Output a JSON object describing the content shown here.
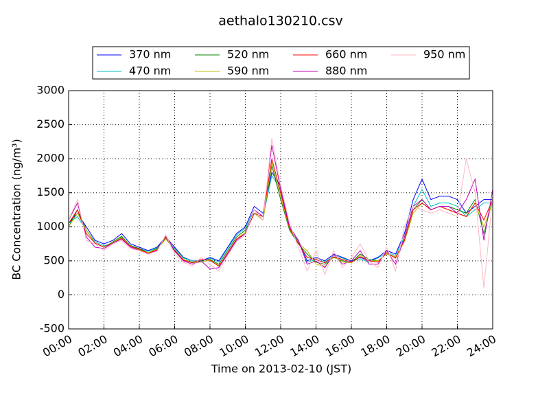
{
  "chart_data": {
    "type": "line",
    "title": "aethalo130210.csv",
    "xlabel": "Time on 2013-02-10 (JST)",
    "ylabel": "BC Concentration (ng/m³)",
    "x": [
      0,
      0.5,
      1,
      1.5,
      2,
      2.5,
      3,
      3.5,
      4,
      4.5,
      5,
      5.5,
      6,
      6.5,
      7,
      7.5,
      8,
      8.5,
      9,
      9.5,
      10,
      10.5,
      11,
      11.5,
      12,
      12.5,
      13,
      13.5,
      14,
      14.5,
      15,
      15.5,
      16,
      16.5,
      17,
      17.5,
      18,
      18.5,
      19,
      19.5,
      20,
      20.5,
      21,
      21.5,
      22,
      22.5,
      23,
      23.5,
      24
    ],
    "xlim": [
      0,
      24
    ],
    "xticks": [
      {
        "value": 0,
        "label": "00:00"
      },
      {
        "value": 2,
        "label": "02:00"
      },
      {
        "value": 4,
        "label": "04:00"
      },
      {
        "value": 6,
        "label": "06:00"
      },
      {
        "value": 8,
        "label": "08:00"
      },
      {
        "value": 10,
        "label": "10:00"
      },
      {
        "value": 12,
        "label": "12:00"
      },
      {
        "value": 14,
        "label": "14:00"
      },
      {
        "value": 16,
        "label": "16:00"
      },
      {
        "value": 18,
        "label": "18:00"
      },
      {
        "value": 20,
        "label": "20:00"
      },
      {
        "value": 22,
        "label": "22:00"
      },
      {
        "value": 24,
        "label": "24:00"
      }
    ],
    "ylim": [
      -500,
      3000
    ],
    "yticks": [
      -500,
      0,
      500,
      1000,
      1500,
      2000,
      2500,
      3000
    ],
    "grid": true,
    "series": [
      {
        "name": "370 nm",
        "color": "#0000ff",
        "values": [
          1050,
          1200,
          1000,
          800,
          750,
          800,
          900,
          750,
          700,
          650,
          700,
          850,
          700,
          550,
          500,
          500,
          550,
          500,
          700,
          900,
          1000,
          1300,
          1200,
          1800,
          1600,
          1000,
          800,
          500,
          550,
          500,
          600,
          550,
          500,
          550,
          500,
          550,
          650,
          600,
          900,
          1400,
          1700,
          1400,
          1450,
          1450,
          1400,
          1200,
          1300,
          1400,
          1400
        ]
      },
      {
        "name": "470 nm",
        "color": "#00bfbf",
        "values": [
          1050,
          1150,
          950,
          780,
          720,
          760,
          850,
          730,
          680,
          640,
          690,
          820,
          680,
          540,
          500,
          490,
          540,
          480,
          680,
          880,
          980,
          1250,
          1150,
          1750,
          1550,
          980,
          780,
          480,
          520,
          480,
          580,
          540,
          490,
          530,
          480,
          540,
          620,
          580,
          850,
          1300,
          1550,
          1300,
          1350,
          1350,
          1300,
          1150,
          1250,
          1350,
          1350
        ]
      },
      {
        "name": "520 nm",
        "color": "#008000",
        "values": [
          1000,
          1250,
          950,
          760,
          700,
          780,
          860,
          720,
          680,
          620,
          680,
          840,
          660,
          520,
          480,
          500,
          520,
          450,
          650,
          850,
          950,
          1200,
          1100,
          1900,
          1400,
          950,
          750,
          600,
          480,
          450,
          550,
          500,
          480,
          600,
          520,
          500,
          600,
          550,
          800,
          1250,
          1400,
          1250,
          1300,
          1300,
          1250,
          1200,
          1400,
          900,
          1400
        ]
      },
      {
        "name": "590 nm",
        "color": "#bfbf00",
        "values": [
          1000,
          1200,
          950,
          760,
          700,
          770,
          840,
          720,
          660,
          620,
          670,
          820,
          650,
          520,
          470,
          480,
          510,
          430,
          600,
          820,
          920,
          1200,
          1100,
          1950,
          1450,
          970,
          760,
          650,
          450,
          420,
          560,
          480,
          470,
          580,
          500,
          500,
          600,
          560,
          780,
          1200,
          1350,
          1250,
          1300,
          1250,
          1200,
          1150,
          1350,
          1000,
          1350
        ]
      },
      {
        "name": "660 nm",
        "color": "#ff0000",
        "values": [
          1050,
          1250,
          900,
          760,
          700,
          760,
          830,
          710,
          670,
          610,
          660,
          850,
          650,
          510,
          470,
          520,
          510,
          420,
          620,
          820,
          900,
          1200,
          1150,
          2000,
          1500,
          980,
          760,
          550,
          520,
          470,
          560,
          520,
          480,
          560,
          500,
          480,
          620,
          540,
          800,
          1250,
          1350,
          1250,
          1300,
          1250,
          1200,
          1150,
          1350,
          1100,
          1400
        ]
      },
      {
        "name": "880 nm",
        "color": "#bf00bf",
        "values": [
          1100,
          1350,
          850,
          700,
          680,
          760,
          820,
          700,
          650,
          600,
          650,
          870,
          640,
          500,
          450,
          500,
          380,
          400,
          600,
          800,
          900,
          1250,
          1150,
          2200,
          1550,
          1000,
          800,
          450,
          500,
          400,
          600,
          450,
          500,
          650,
          450,
          450,
          650,
          450,
          850,
          1300,
          1400,
          1250,
          1300,
          1300,
          1200,
          1400,
          1700,
          800,
          1550
        ]
      },
      {
        "name": "950 nm",
        "color": "#ffb6c1",
        "values": [
          1100,
          1400,
          800,
          750,
          650,
          750,
          800,
          680,
          650,
          600,
          640,
          880,
          600,
          480,
          420,
          550,
          450,
          350,
          580,
          780,
          880,
          1250,
          1100,
          2300,
          1600,
          1050,
          700,
          350,
          650,
          300,
          650,
          400,
          550,
          750,
          500,
          400,
          700,
          350,
          1000,
          1300,
          1250,
          1200,
          1250,
          1200,
          1150,
          2000,
          1500,
          100,
          1450
        ]
      }
    ]
  }
}
